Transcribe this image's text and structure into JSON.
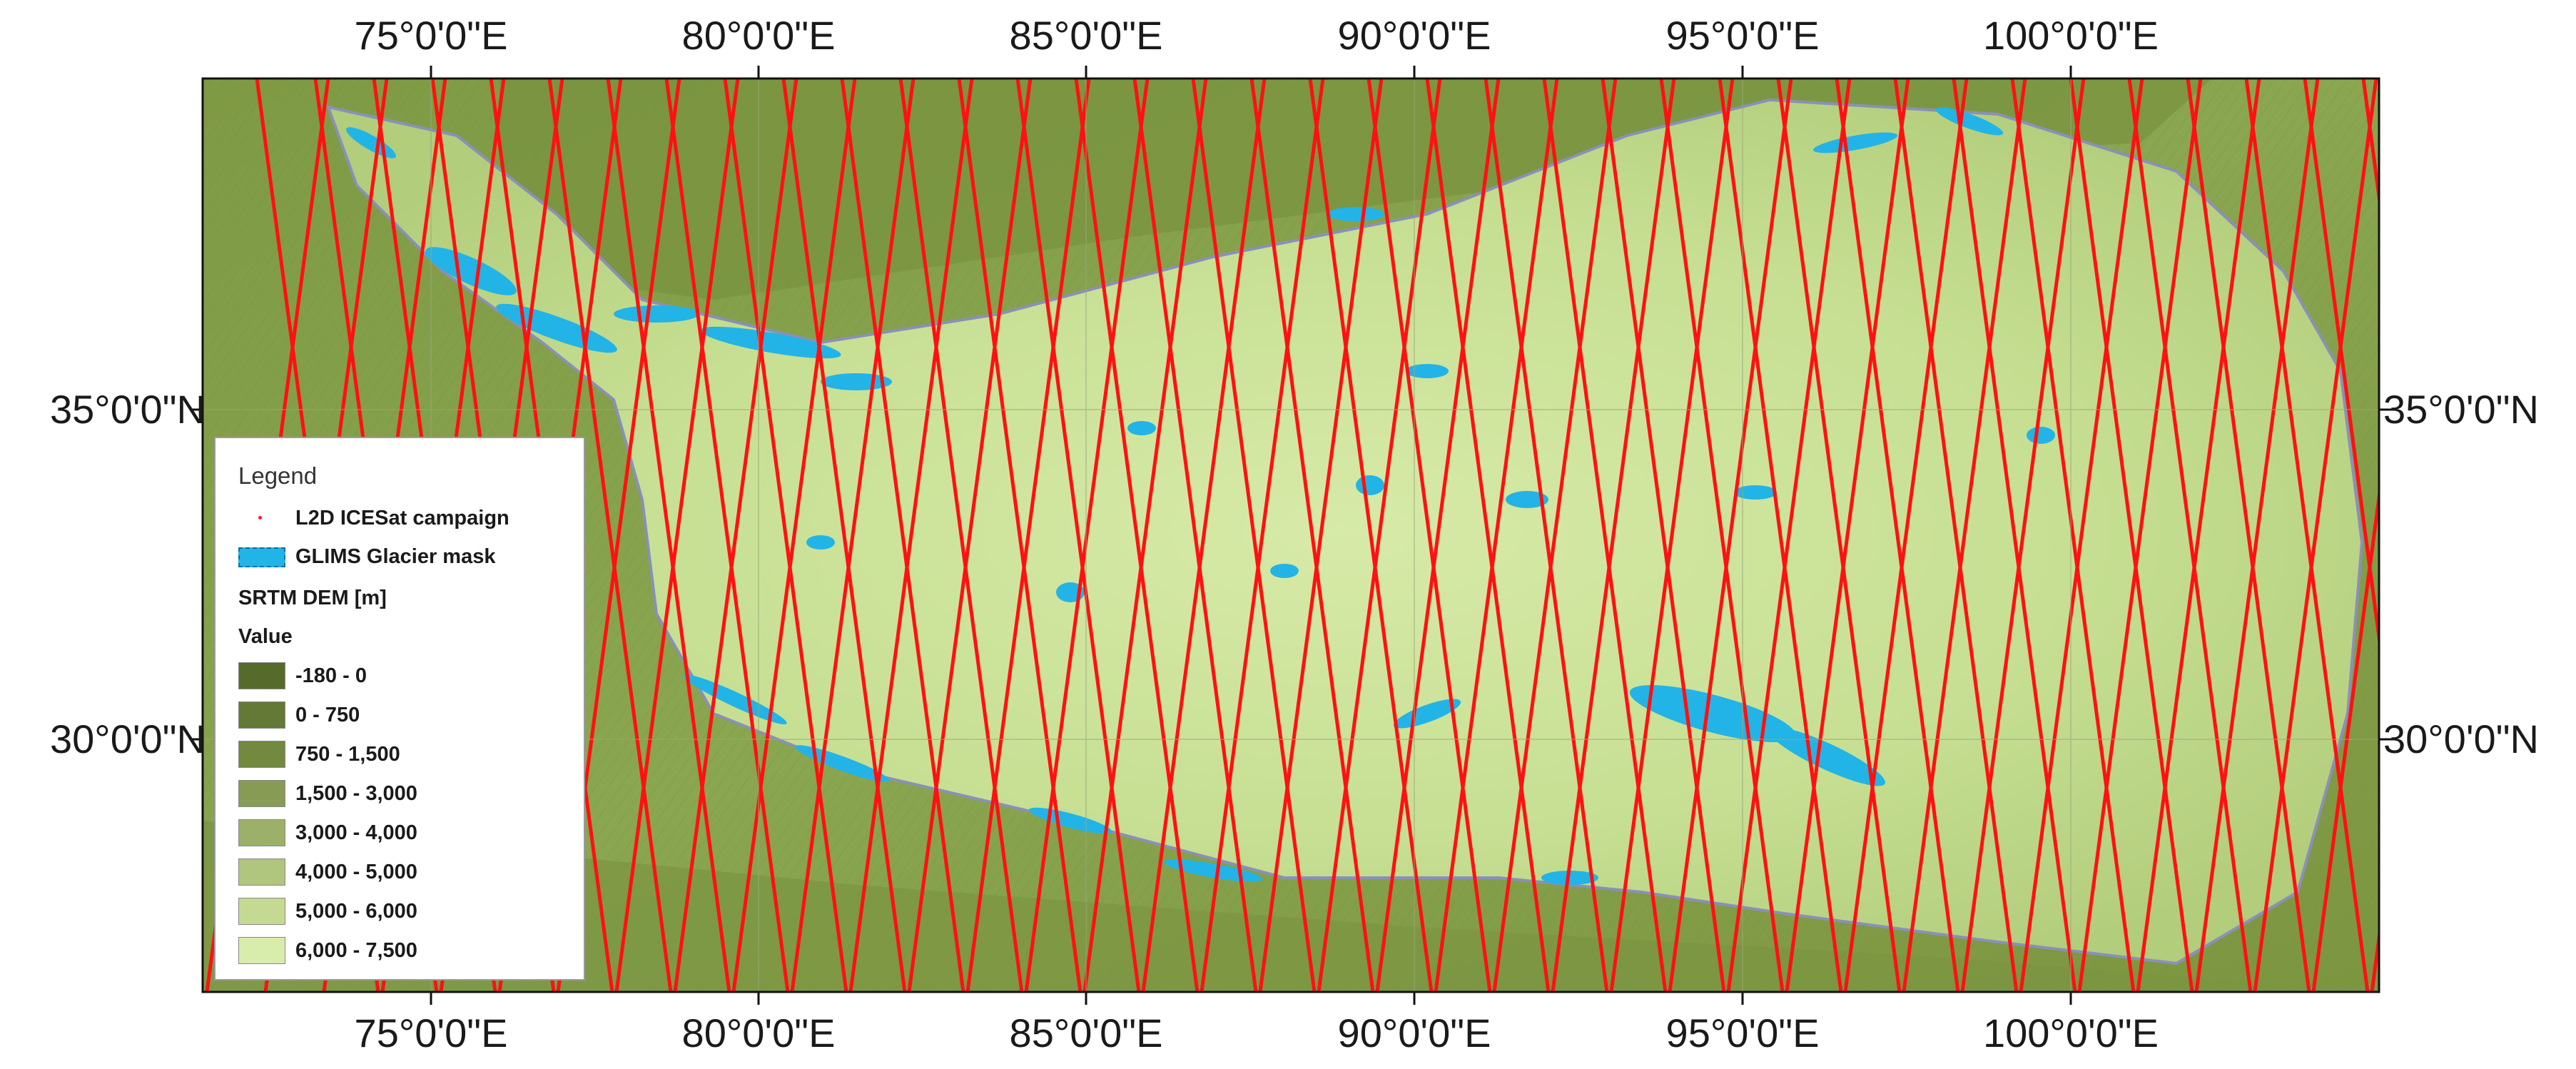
{
  "map": {
    "lon_labels": [
      "75°0'0\"E",
      "80°0'0\"E",
      "85°0'0\"E",
      "90°0'0\"E",
      "95°0'0\"E",
      "100°0'0\"E"
    ],
    "lat_labels": [
      "35°0'0\"N",
      "30°0'0\"N"
    ],
    "colors": {
      "track": "#ff1111",
      "glacier": "#22b4e6",
      "boundary": "#8a90b8",
      "frame": "#111111"
    }
  },
  "legend": {
    "title": "Legend",
    "track_label": "L2D ICESat campaign",
    "glacier_label": "GLIMS Glacier mask",
    "dem_label": "SRTM DEM [m]",
    "value_label": "Value",
    "classes": [
      {
        "label": "-180 - 0",
        "color": "#566b2a"
      },
      {
        "label": "0 - 750",
        "color": "#637935"
      },
      {
        "label": "750 - 1,500",
        "color": "#73893f"
      },
      {
        "label": "1,500 - 3,000",
        "color": "#879b55"
      },
      {
        "label": "3,000 - 4,000",
        "color": "#9cb06a"
      },
      {
        "label": "4,000 - 5,000",
        "color": "#b0c57d"
      },
      {
        "label": "5,000 - 6,000",
        "color": "#c4da93"
      },
      {
        "label": "6,000 - 7,500",
        "color": "#d8ecac"
      }
    ]
  }
}
